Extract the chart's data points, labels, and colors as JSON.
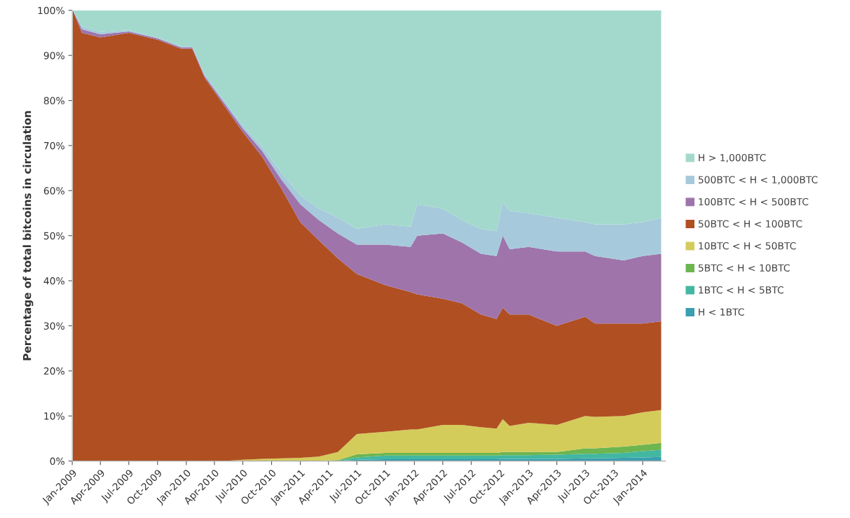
{
  "chart_data": {
    "type": "area",
    "stacked": true,
    "ylabel": "Percentage of total bitcoins in circulation",
    "x": [
      "2009-01-03",
      "2009-02",
      "2009-04",
      "2009-07",
      "2009-10",
      "2009-12-15",
      "2010-01-20",
      "2010-03",
      "2010-05",
      "2010-07",
      "2010-09",
      "2010-11",
      "2011-01",
      "2011-03",
      "2011-05",
      "2011-07",
      "2011-10",
      "2011-12-20",
      "2012-01-10",
      "2012-04",
      "2012-06",
      "2012-08",
      "2012-09-20",
      "2012-10-10",
      "2012-11",
      "2013-01",
      "2013-04",
      "2013-07",
      "2013-08",
      "2013-11",
      "2014-01",
      "2014-03"
    ],
    "series": [
      {
        "name": "H < 1BTC",
        "color": "#3a9fb0",
        "values": [
          0,
          0,
          0,
          0,
          0,
          0,
          0,
          0,
          0,
          0,
          0,
          0,
          0,
          0,
          0,
          0.3,
          0.4,
          0.4,
          0.4,
          0.4,
          0.4,
          0.4,
          0.4,
          0.5,
          0.5,
          0.5,
          0.5,
          0.6,
          0.6,
          0.7,
          0.8,
          0.9
        ]
      },
      {
        "name": "1BTC < H < 5BTC",
        "color": "#42b7a2",
        "values": [
          0,
          0,
          0,
          0,
          0,
          0,
          0,
          0,
          0,
          0,
          0,
          0,
          0,
          0,
          0.1,
          0.5,
          0.8,
          0.8,
          0.8,
          0.8,
          0.8,
          0.8,
          0.8,
          0.8,
          0.8,
          0.8,
          0.9,
          1,
          1,
          1.1,
          1.4,
          1.6
        ]
      },
      {
        "name": "5BTC < H < 10BTC",
        "color": "#6db550",
        "values": [
          0,
          0,
          0,
          0,
          0,
          0,
          0,
          0,
          0,
          0,
          0,
          0,
          0,
          0.1,
          0.1,
          0.7,
          0.6,
          0.6,
          0.6,
          0.6,
          0.6,
          0.6,
          0.6,
          0.7,
          0.7,
          0.7,
          0.6,
          1.2,
          1.2,
          1.4,
          1.4,
          1.5
        ]
      },
      {
        "name": "10BTC < H < 50BTC",
        "color": "#d4cc5a",
        "values": [
          0,
          0,
          0,
          0,
          0,
          0,
          0,
          0,
          0,
          0.3,
          0.5,
          0.6,
          0.7,
          0.9,
          1.8,
          4.5,
          4.7,
          5.2,
          5.2,
          6.2,
          6.2,
          5.7,
          5.4,
          7.3,
          5.8,
          6.5,
          6,
          7.2,
          7,
          6.8,
          7.2,
          7.3
        ]
      },
      {
        "name": "50BTC < H < 100BTC",
        "color": "#b04f22",
        "values": [
          100,
          95,
          94,
          95,
          93.5,
          91.5,
          91.5,
          85,
          79,
          72.7,
          67,
          59.9,
          52.3,
          48,
          43,
          35.5,
          32.5,
          30.5,
          30,
          28,
          27,
          25,
          24.3,
          24.7,
          24.7,
          24,
          22,
          22,
          20.7,
          20.5,
          19.7,
          19.7
        ]
      },
      {
        "name": "100BTC < H < 500BTC",
        "color": "#9e74ab",
        "values": [
          0,
          0.8,
          0.7,
          0.3,
          0.3,
          0.3,
          0.3,
          0.4,
          0.6,
          0.8,
          1.3,
          2,
          4,
          4.5,
          5.5,
          6.5,
          9,
          10,
          13,
          14.5,
          13.5,
          13.5,
          14,
          16,
          14.5,
          15,
          16.5,
          14.5,
          15,
          14,
          15,
          15
        ]
      },
      {
        "name": "500BTC < H < 1,000BTC",
        "color": "#a6cadb",
        "values": [
          0,
          0.7,
          0.5,
          0.3,
          0.2,
          0.2,
          0.2,
          0.4,
          0.6,
          0.7,
          1,
          1.5,
          2,
          2.5,
          3.5,
          3.5,
          4.5,
          4.5,
          7,
          5.5,
          5,
          5.5,
          5.5,
          7.5,
          8.5,
          7.5,
          7.5,
          6.5,
          7,
          8,
          7.5,
          8
        ]
      },
      {
        "name": "H > 1,000BTC",
        "color": "#a3d9cc",
        "values": [
          0,
          3.5,
          4.8,
          4.4,
          6,
          8,
          8,
          14.2,
          19.8,
          25.5,
          30.2,
          36,
          41,
          44,
          46,
          48.5,
          47.5,
          48,
          43,
          44,
          46.5,
          48.5,
          49,
          42.5,
          44.5,
          45,
          46,
          47,
          47.5,
          47.5,
          47,
          46
        ]
      }
    ],
    "xlim": [
      "2009-01-01",
      "2014-03-15"
    ],
    "xticks": [
      {
        "value": "2009-01",
        "label": "Jan-2009"
      },
      {
        "value": "2009-04",
        "label": "Apr-2009"
      },
      {
        "value": "2009-07",
        "label": "Jul-2009"
      },
      {
        "value": "2009-10",
        "label": "Oct-2009"
      },
      {
        "value": "2010-01",
        "label": "Jan-2010"
      },
      {
        "value": "2010-04",
        "label": "Apr-2010"
      },
      {
        "value": "2010-07",
        "label": "Jul-2010"
      },
      {
        "value": "2010-10",
        "label": "Oct-2010"
      },
      {
        "value": "2011-01",
        "label": "Jan-2011"
      },
      {
        "value": "2011-04",
        "label": "Apr-2011"
      },
      {
        "value": "2011-07",
        "label": "Jul-2011"
      },
      {
        "value": "2011-10",
        "label": "Oct-2011"
      },
      {
        "value": "2012-01",
        "label": "Jan-2012"
      },
      {
        "value": "2012-04",
        "label": "Apr-2012"
      },
      {
        "value": "2012-07",
        "label": "Jul-2012"
      },
      {
        "value": "2012-10",
        "label": "Oct-2012"
      },
      {
        "value": "2013-01",
        "label": "Jan-2013"
      },
      {
        "value": "2013-04",
        "label": "Apr-2013"
      },
      {
        "value": "2013-07",
        "label": "Jul-2013"
      },
      {
        "value": "2013-10",
        "label": "Oct-2013"
      },
      {
        "value": "2014-01",
        "label": "Jan-2014"
      }
    ],
    "ylim": [
      0,
      100
    ],
    "yticks": [
      {
        "value": 0,
        "label": "0%"
      },
      {
        "value": 10,
        "label": "10%"
      },
      {
        "value": 20,
        "label": "20%"
      },
      {
        "value": 30,
        "label": "30%"
      },
      {
        "value": 40,
        "label": "40%"
      },
      {
        "value": 50,
        "label": "50%"
      },
      {
        "value": 60,
        "label": "60%"
      },
      {
        "value": 70,
        "label": "70%"
      },
      {
        "value": 80,
        "label": "80%"
      },
      {
        "value": 90,
        "label": "90%"
      },
      {
        "value": 100,
        "label": "100%"
      }
    ],
    "grid": false,
    "legend": "right"
  }
}
